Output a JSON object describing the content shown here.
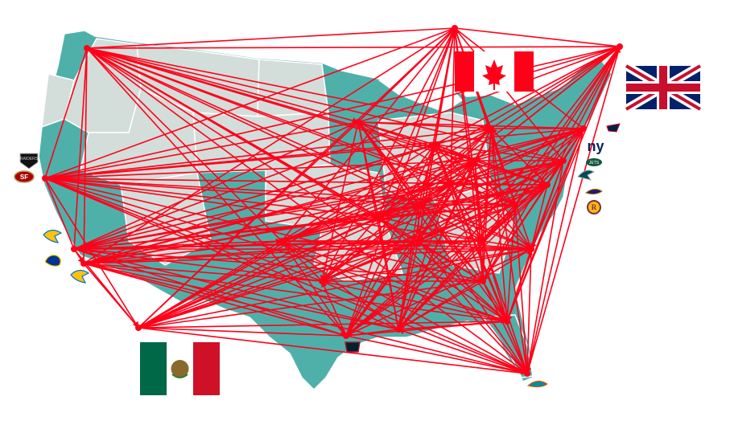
{
  "colors": {
    "background": "#ffffff",
    "state_teal": "#4fb0aa",
    "state_gray": "#d3ddd9",
    "state_border": "#ffffff",
    "route_line": "#ff0019",
    "endpoint": "#ff0019"
  },
  "flags": [
    {
      "name": "canada-flag-icon",
      "country": "Canada"
    },
    {
      "name": "united-kingdom-flag-icon",
      "country": "United Kingdom"
    },
    {
      "name": "mexico-flag-icon",
      "country": "Mexico"
    }
  ],
  "team_logos": [
    {
      "name": "raiders-logo-icon",
      "label": "RAIDERS"
    },
    {
      "name": "49ers-logo-icon",
      "label": "SF"
    },
    {
      "name": "chargers-logo-icon",
      "label": ""
    },
    {
      "name": "rams-logo-icon",
      "label": ""
    },
    {
      "name": "chargers-alt-logo-icon",
      "label": ""
    },
    {
      "name": "giants-logo-icon",
      "label": "ny"
    },
    {
      "name": "patriots-logo-icon",
      "label": ""
    },
    {
      "name": "jets-logo-icon",
      "label": "JETS"
    },
    {
      "name": "eagles-logo-icon",
      "label": ""
    },
    {
      "name": "ravens-logo-icon",
      "label": ""
    },
    {
      "name": "redskins-logo-icon",
      "label": "R"
    },
    {
      "name": "texans-logo-icon",
      "label": ""
    },
    {
      "name": "dolphins-logo-icon",
      "label": ""
    }
  ]
}
